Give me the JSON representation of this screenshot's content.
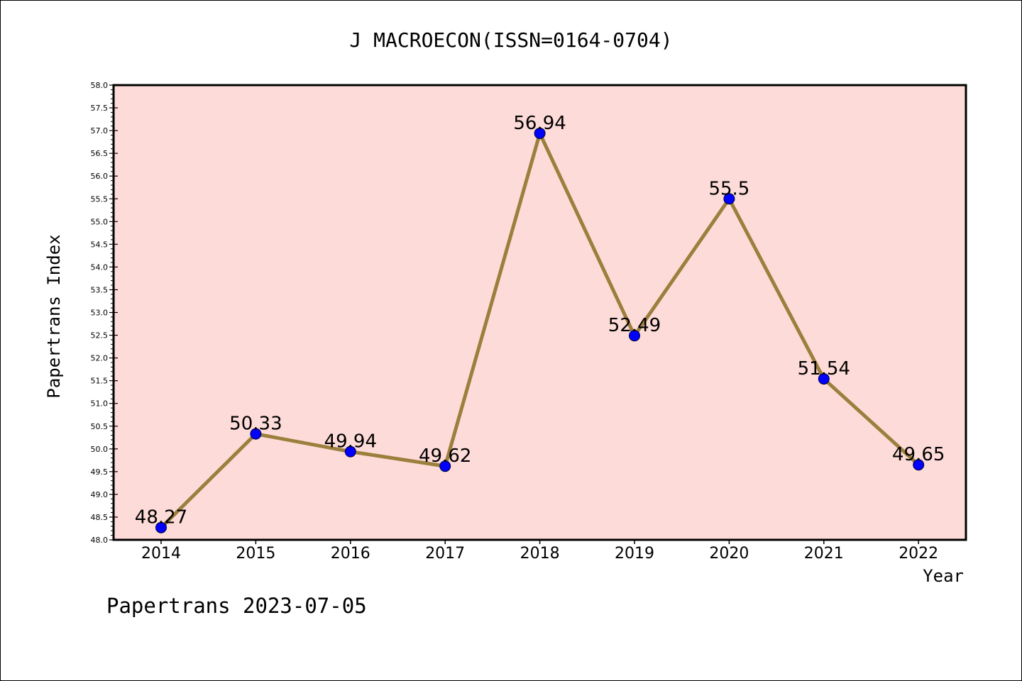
{
  "chart_data": {
    "type": "line",
    "title": "J MACROECON(ISSN=0164-0704)",
    "xlabel": "Year",
    "ylabel": "Papertrans Index",
    "footer": "Papertrans 2023-07-05",
    "x": [
      "2014",
      "2015",
      "2016",
      "2017",
      "2018",
      "2019",
      "2020",
      "2021",
      "2022"
    ],
    "values": [
      48.27,
      50.33,
      49.94,
      49.62,
      56.94,
      52.49,
      55.5,
      51.54,
      49.65
    ],
    "data_labels": [
      "48.27",
      "50.33",
      "49.94",
      "49.62",
      "56.94",
      "52.49",
      "55.5",
      "51.54",
      "49.65"
    ],
    "ylim": [
      48.0,
      58.0
    ],
    "yticks": [
      "48.0",
      "48.5",
      "49.0",
      "49.5",
      "50.0",
      "50.5",
      "51.0",
      "51.5",
      "52.0",
      "52.5",
      "53.0",
      "53.5",
      "54.0",
      "54.5",
      "55.0",
      "55.5",
      "56.0",
      "56.5",
      "57.0",
      "57.5",
      "58.0"
    ],
    "grid": false,
    "colors": {
      "plot_background": "#fddbd8",
      "line": "#9b7f3c",
      "marker": "#0000ff"
    }
  }
}
